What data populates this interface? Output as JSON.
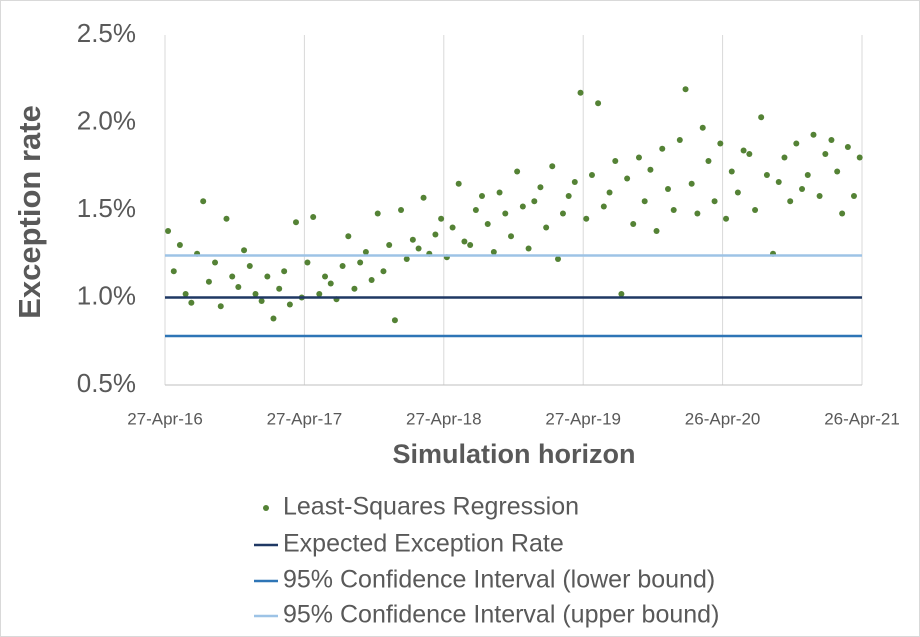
{
  "chart_data": {
    "type": "scatter",
    "xlabel": "Simulation horizon",
    "ylabel": "Exception rate",
    "xlim": [
      "2016-04-27",
      "2021-04-26"
    ],
    "xticks": [
      {
        "value": "2016-04-27",
        "label": "27-Apr-16"
      },
      {
        "value": "2017-04-27",
        "label": "27-Apr-17"
      },
      {
        "value": "2018-04-27",
        "label": "27-Apr-18"
      },
      {
        "value": "2019-04-27",
        "label": "27-Apr-19"
      },
      {
        "value": "2020-04-26",
        "label": "26-Apr-20"
      },
      {
        "value": "2021-04-26",
        "label": "26-Apr-21"
      }
    ],
    "ylim": [
      0.5,
      2.5
    ],
    "yticks": [
      {
        "value": 0.5,
        "label": "0.5%"
      },
      {
        "value": 1.0,
        "label": "1.0%"
      },
      {
        "value": 1.5,
        "label": "1.5%"
      },
      {
        "value": 2.0,
        "label": "2.0%"
      },
      {
        "value": 2.5,
        "label": "2.5%"
      }
    ],
    "grid": "x",
    "legend": "bottom",
    "series": [
      {
        "name": "Least-Squares Regression",
        "type": "scatter",
        "color": "#548235",
        "x": [
          "2016-05-05",
          "2016-05-20",
          "2016-06-05",
          "2016-06-20",
          "2016-07-05",
          "2016-07-20",
          "2016-08-05",
          "2016-08-20",
          "2016-09-05",
          "2016-09-20",
          "2016-10-05",
          "2016-10-20",
          "2016-11-05",
          "2016-11-20",
          "2016-12-05",
          "2016-12-20",
          "2017-01-05",
          "2017-01-20",
          "2017-02-05",
          "2017-02-20",
          "2017-03-05",
          "2017-03-20",
          "2017-04-05",
          "2017-04-20",
          "2017-05-05",
          "2017-05-20",
          "2017-06-05",
          "2017-06-20",
          "2017-07-05",
          "2017-07-20",
          "2017-08-05",
          "2017-08-20",
          "2017-09-05",
          "2017-09-20",
          "2017-10-05",
          "2017-10-20",
          "2017-11-05",
          "2017-11-20",
          "2017-12-05",
          "2017-12-20",
          "2018-01-05",
          "2018-01-20",
          "2018-02-05",
          "2018-02-20",
          "2018-03-05",
          "2018-03-20",
          "2018-04-05",
          "2018-04-20",
          "2018-05-05",
          "2018-05-20",
          "2018-06-05",
          "2018-06-20",
          "2018-07-05",
          "2018-07-20",
          "2018-08-05",
          "2018-08-20",
          "2018-09-05",
          "2018-09-20",
          "2018-10-05",
          "2018-10-20",
          "2018-11-05",
          "2018-11-20",
          "2018-12-05",
          "2018-12-20",
          "2019-01-05",
          "2019-01-20",
          "2019-02-05",
          "2019-02-20",
          "2019-03-05",
          "2019-03-20",
          "2019-04-05",
          "2019-04-20",
          "2019-05-05",
          "2019-05-20",
          "2019-06-05",
          "2019-06-20",
          "2019-07-05",
          "2019-07-20",
          "2019-08-05",
          "2019-08-20",
          "2019-09-05",
          "2019-09-20",
          "2019-10-05",
          "2019-10-20",
          "2019-11-05",
          "2019-11-20",
          "2019-12-05",
          "2019-12-20",
          "2020-01-05",
          "2020-01-20",
          "2020-02-05",
          "2020-02-20",
          "2020-03-05",
          "2020-03-20",
          "2020-04-05",
          "2020-04-20",
          "2020-05-05",
          "2020-05-20",
          "2020-06-05",
          "2020-06-20",
          "2020-07-05",
          "2020-07-20",
          "2020-08-05",
          "2020-08-20",
          "2020-09-05",
          "2020-09-20",
          "2020-10-05",
          "2020-10-20",
          "2020-11-05",
          "2020-11-20",
          "2020-12-05",
          "2020-12-20",
          "2021-01-05",
          "2021-01-20",
          "2021-02-05",
          "2021-02-20",
          "2021-03-05",
          "2021-03-20",
          "2021-04-05",
          "2021-04-20"
        ],
        "values": [
          1.38,
          1.15,
          1.3,
          1.02,
          0.97,
          1.25,
          1.55,
          1.09,
          1.2,
          0.95,
          1.45,
          1.12,
          1.06,
          1.27,
          1.18,
          1.02,
          0.98,
          1.12,
          0.88,
          1.05,
          1.15,
          0.96,
          1.43,
          1.0,
          1.2,
          1.46,
          1.02,
          1.12,
          1.08,
          0.99,
          1.18,
          1.35,
          1.05,
          1.2,
          1.26,
          1.1,
          1.48,
          1.15,
          1.3,
          0.87,
          1.5,
          1.22,
          1.33,
          1.28,
          1.57,
          1.25,
          1.36,
          1.45,
          1.23,
          1.4,
          1.65,
          1.32,
          1.3,
          1.5,
          1.58,
          1.42,
          1.26,
          1.6,
          1.48,
          1.35,
          1.72,
          1.52,
          1.28,
          1.55,
          1.63,
          1.4,
          1.75,
          1.22,
          1.48,
          1.58,
          1.66,
          2.17,
          1.45,
          1.7,
          2.11,
          1.52,
          1.6,
          1.78,
          1.02,
          1.68,
          1.42,
          1.8,
          1.55,
          1.73,
          1.38,
          1.85,
          1.62,
          1.5,
          1.9,
          2.19,
          1.65,
          1.48,
          1.97,
          1.78,
          1.55,
          1.88,
          1.45,
          1.72,
          1.6,
          1.84,
          1.82,
          1.5,
          2.03,
          1.7,
          1.25,
          1.66,
          1.8,
          1.55,
          1.88,
          1.62,
          1.7,
          1.93,
          1.58,
          1.82,
          1.9,
          1.72,
          1.48,
          1.86,
          1.58,
          1.8
        ]
      },
      {
        "name": "Expected Exception Rate",
        "type": "line",
        "color": "#1f3864",
        "x": [
          "2016-04-27",
          "2021-04-26"
        ],
        "values": [
          1.0,
          1.0
        ]
      },
      {
        "name": "95% Confidence Interval (lower bound)",
        "type": "line",
        "color": "#2e75b6",
        "x": [
          "2016-04-27",
          "2021-04-26"
        ],
        "values": [
          0.78,
          0.78
        ]
      },
      {
        "name": "95% Confidence Interval (upper bound)",
        "type": "line",
        "color": "#9dc3e6",
        "x": [
          "2016-04-27",
          "2021-04-26"
        ],
        "values": [
          1.24,
          1.24
        ]
      }
    ]
  }
}
